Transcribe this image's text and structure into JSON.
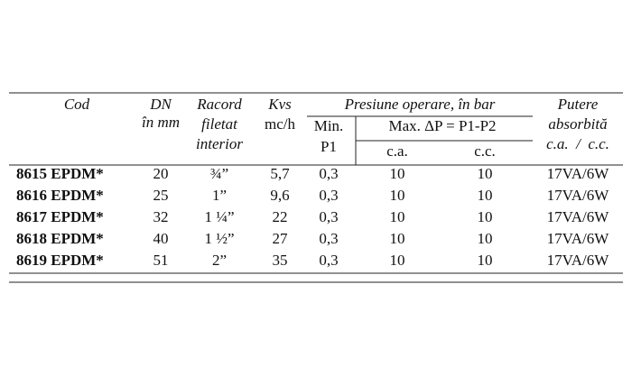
{
  "table": {
    "header": {
      "cod": "Cod",
      "dn": [
        "DN",
        "în mm"
      ],
      "racord": [
        "Racord",
        "filetat",
        "interior"
      ],
      "kvs": [
        "Kvs",
        "mc/h"
      ],
      "presiune": "Presiune operare, în bar",
      "min": [
        "Min.",
        "P1"
      ],
      "max": "Max. ΔP = P1-P2",
      "ca": "c.a.",
      "cc": "c.c.",
      "putere": [
        "Putere",
        "absorbită",
        "c.a.  /  c.c."
      ]
    },
    "rows": [
      [
        "8615 EPDM*",
        "20",
        "¾”",
        "5,7",
        "0,3",
        "10",
        "10",
        "17VA/6W"
      ],
      [
        "8616 EPDM*",
        "25",
        "1”",
        "9,6",
        "0,3",
        "10",
        "10",
        "17VA/6W"
      ],
      [
        "8617 EPDM*",
        "32",
        "1 ¼”",
        "22",
        "0,3",
        "10",
        "10",
        "17VA/6W"
      ],
      [
        "8618 EPDM*",
        "40",
        "1 ½”",
        "27",
        "0,3",
        "10",
        "10",
        "17VA/6W"
      ],
      [
        "8619 EPDM*",
        "51",
        "2”",
        "35",
        "0,3",
        "10",
        "10",
        "17VA/6W"
      ]
    ]
  }
}
